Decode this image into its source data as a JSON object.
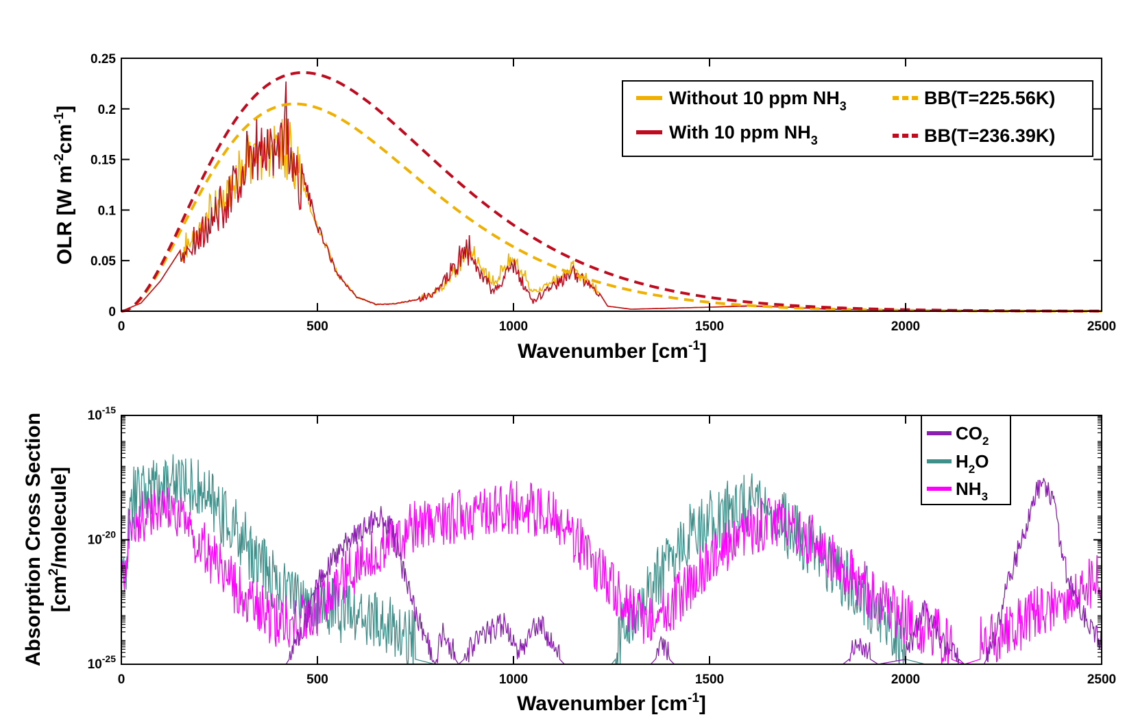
{
  "figure": {
    "colors": {
      "without": "#f0b000",
      "with": "#c00a1e",
      "co2": "#8a1fb0",
      "h2o": "#3f8f8a",
      "nh3": "#ff00ff"
    }
  },
  "chart_data": [
    {
      "type": "line",
      "title": "",
      "xlabel": "Wavenumber [cm",
      "xlabel_sup": "-1",
      "xlabel_end": "]",
      "ylabel": "OLR [W m",
      "ylabel_sup1": "-2",
      "ylabel_mid": "cm",
      "ylabel_sup2": "-1",
      "ylabel_end": "]",
      "xlim": [
        0,
        2500
      ],
      "ylim": [
        0,
        0.25
      ],
      "xticks": [
        0,
        500,
        1000,
        1500,
        2000,
        2500
      ],
      "xtick_labels": [
        "0",
        "500",
        "1000",
        "1500",
        "2000",
        "2500"
      ],
      "yticks": [
        0,
        0.05,
        0.1,
        0.15,
        0.2,
        0.25
      ],
      "ytick_labels": [
        "0",
        "0.05",
        "0.1",
        "0.15",
        "0.2",
        "0.25"
      ],
      "legend_position": "top-right",
      "series": [
        {
          "name": "Without 10 ppm NH3",
          "label": "Without 10 ppm NH",
          "label_sub": "3",
          "style": "solid",
          "color_key": "without",
          "points": [
            [
              0,
              0
            ],
            [
              50,
              0.008
            ],
            [
              100,
              0.03
            ],
            [
              150,
              0.06
            ],
            [
              200,
              0.09
            ],
            [
              250,
              0.12
            ],
            [
              300,
              0.15
            ],
            [
              350,
              0.17
            ],
            [
              400,
              0.175
            ],
            [
              430,
              0.17
            ],
            [
              450,
              0.15
            ],
            [
              500,
              0.09
            ],
            [
              550,
              0.04
            ],
            [
              600,
              0.015
            ],
            [
              650,
              0.007
            ],
            [
              700,
              0.008
            ],
            [
              750,
              0.012
            ],
            [
              800,
              0.02
            ],
            [
              850,
              0.04
            ],
            [
              880,
              0.065
            ],
            [
              900,
              0.06
            ],
            [
              950,
              0.03
            ],
            [
              1000,
              0.06
            ],
            [
              1050,
              0.02
            ],
            [
              1100,
              0.035
            ],
            [
              1150,
              0.045
            ],
            [
              1200,
              0.03
            ],
            [
              1240,
              0.005
            ],
            [
              1300,
              0.002
            ],
            [
              1500,
              0.004
            ],
            [
              1600,
              0.006
            ],
            [
              1700,
              0.004
            ],
            [
              1800,
              0.002
            ],
            [
              2000,
              0.001
            ],
            [
              2500,
              0.0005
            ]
          ]
        },
        {
          "name": "With 10 ppm NH3",
          "label": "With 10 ppm NH",
          "label_sub": "3",
          "style": "solid",
          "color_key": "with",
          "points": [
            [
              0,
              0
            ],
            [
              50,
              0.008
            ],
            [
              100,
              0.03
            ],
            [
              150,
              0.06
            ],
            [
              200,
              0.09
            ],
            [
              250,
              0.12
            ],
            [
              300,
              0.15
            ],
            [
              350,
              0.18
            ],
            [
              400,
              0.205
            ],
            [
              420,
              0.21
            ],
            [
              450,
              0.16
            ],
            [
              500,
              0.09
            ],
            [
              550,
              0.04
            ],
            [
              600,
              0.015
            ],
            [
              650,
              0.007
            ],
            [
              700,
              0.008
            ],
            [
              750,
              0.012
            ],
            [
              800,
              0.022
            ],
            [
              850,
              0.05
            ],
            [
              880,
              0.07
            ],
            [
              900,
              0.06
            ],
            [
              950,
              0.02
            ],
            [
              1000,
              0.055
            ],
            [
              1050,
              0.01
            ],
            [
              1100,
              0.03
            ],
            [
              1150,
              0.045
            ],
            [
              1200,
              0.03
            ],
            [
              1240,
              0.005
            ],
            [
              1300,
              0.002
            ],
            [
              1500,
              0.004
            ],
            [
              1600,
              0.005
            ],
            [
              1700,
              0.004
            ],
            [
              1800,
              0.002
            ],
            [
              2000,
              0.001
            ],
            [
              2500,
              0.0005
            ]
          ]
        },
        {
          "name": "BB(T=225.56K)",
          "label": "BB(T=225.56K)",
          "style": "dashed",
          "color_key": "without",
          "blackbody_T": 225.56
        },
        {
          "name": "BB(T=236.39K)",
          "label": "BB(T=236.39K)",
          "style": "dashed",
          "color_key": "with",
          "blackbody_T": 236.39
        }
      ]
    },
    {
      "type": "line",
      "title": "",
      "xlabel": "Wavenumber [cm",
      "xlabel_sup": "-1",
      "xlabel_end": "]",
      "ylabel_line1": "Absorption Cross Section",
      "ylabel_line2_a": "[cm",
      "ylabel_line2_sup": "2",
      "ylabel_line2_b": "/molecule]",
      "yscale": "log",
      "xlim": [
        0,
        2500
      ],
      "ylim_exp": [
        -25,
        -15
      ],
      "xticks": [
        0,
        500,
        1000,
        1500,
        2000,
        2500
      ],
      "xtick_labels": [
        "0",
        "500",
        "1000",
        "1500",
        "2000",
        "2500"
      ],
      "yticks_exp": [
        -25,
        -20,
        -15
      ],
      "ytick_base": "10",
      "ytick_exps": [
        "-25",
        "-20",
        "-15"
      ],
      "legend_position": "top-right",
      "series": [
        {
          "name": "CO2",
          "label": "CO",
          "label_sub": "2",
          "color_key": "co2",
          "log10_points": [
            [
              420,
              -25
            ],
            [
              460,
              -24
            ],
            [
              500,
              -22
            ],
            [
              560,
              -20.5
            ],
            [
              610,
              -19.8
            ],
            [
              660,
              -19.2
            ],
            [
              690,
              -19.8
            ],
            [
              720,
              -21.5
            ],
            [
              760,
              -23.5
            ],
            [
              800,
              -25
            ],
            [
              820,
              -24
            ],
            [
              860,
              -25
            ],
            [
              930,
              -24
            ],
            [
              980,
              -23.5
            ],
            [
              1010,
              -24.8
            ],
            [
              1040,
              -24
            ],
            [
              1070,
              -23.5
            ],
            [
              1100,
              -24.5
            ],
            [
              1130,
              -25
            ],
            [
              1350,
              -25
            ],
            [
              1380,
              -24.5
            ],
            [
              1410,
              -25
            ],
            [
              1840,
              -25
            ],
            [
              1880,
              -24.5
            ],
            [
              1930,
              -25
            ],
            [
              2000,
              -24.8
            ],
            [
              2050,
              -23
            ],
            [
              2080,
              -24
            ],
            [
              2150,
              -25
            ],
            [
              2200,
              -25
            ],
            [
              2230,
              -24
            ],
            [
              2260,
              -22
            ],
            [
              2300,
              -20
            ],
            [
              2330,
              -18.5
            ],
            [
              2350,
              -17.8
            ],
            [
              2375,
              -18.5
            ],
            [
              2400,
              -21
            ],
            [
              2430,
              -22.5
            ],
            [
              2470,
              -23.8
            ],
            [
              2500,
              -24.2
            ]
          ]
        },
        {
          "name": "H2O",
          "label": "H",
          "label_sub": "2",
          "label_end": "O",
          "color_key": "h2o",
          "log10_points": [
            [
              0,
              -23
            ],
            [
              30,
              -19
            ],
            [
              100,
              -18.5
            ],
            [
              150,
              -18.2
            ],
            [
              200,
              -18.8
            ],
            [
              250,
              -19.5
            ],
            [
              300,
              -20.5
            ],
            [
              350,
              -21.5
            ],
            [
              400,
              -22.5
            ],
            [
              450,
              -23
            ],
            [
              500,
              -23.3
            ],
            [
              550,
              -23.5
            ],
            [
              600,
              -23.8
            ],
            [
              650,
              -24
            ],
            [
              700,
              -24.4
            ],
            [
              750,
              -24.8
            ],
            [
              800,
              -25
            ],
            [
              1150,
              -25
            ],
            [
              1250,
              -25
            ],
            [
              1300,
              -24
            ],
            [
              1350,
              -22.5
            ],
            [
              1400,
              -21.5
            ],
            [
              1450,
              -20.5
            ],
            [
              1500,
              -20
            ],
            [
              1550,
              -19.5
            ],
            [
              1600,
              -19.2
            ],
            [
              1650,
              -19.5
            ],
            [
              1700,
              -20.2
            ],
            [
              1750,
              -20.8
            ],
            [
              1800,
              -21.5
            ],
            [
              1850,
              -22.3
            ],
            [
              1900,
              -23
            ],
            [
              1950,
              -24
            ],
            [
              2000,
              -24.8
            ],
            [
              2050,
              -25
            ],
            [
              2500,
              -25
            ]
          ]
        },
        {
          "name": "NH3",
          "label": "NH",
          "label_sub": "3",
          "color_key": "nh3",
          "log10_points": [
            [
              0,
              -23
            ],
            [
              20,
              -20
            ],
            [
              50,
              -19.8
            ],
            [
              100,
              -19.5
            ],
            [
              150,
              -20
            ],
            [
              200,
              -20.8
            ],
            [
              250,
              -21.8
            ],
            [
              300,
              -22.8
            ],
            [
              350,
              -23.5
            ],
            [
              400,
              -24
            ],
            [
              450,
              -24
            ],
            [
              500,
              -23.5
            ],
            [
              550,
              -22.5
            ],
            [
              600,
              -21.8
            ],
            [
              650,
              -21
            ],
            [
              700,
              -20.5
            ],
            [
              750,
              -20.2
            ],
            [
              800,
              -20
            ],
            [
              850,
              -19.8
            ],
            [
              900,
              -19.6
            ],
            [
              950,
              -19.5
            ],
            [
              1000,
              -19.4
            ],
            [
              1050,
              -19.5
            ],
            [
              1100,
              -19.8
            ],
            [
              1150,
              -20.5
            ],
            [
              1200,
              -21.5
            ],
            [
              1250,
              -22.5
            ],
            [
              1300,
              -23.5
            ],
            [
              1350,
              -24
            ],
            [
              1400,
              -23.5
            ],
            [
              1450,
              -22.5
            ],
            [
              1500,
              -21.5
            ],
            [
              1550,
              -20.8
            ],
            [
              1600,
              -20.3
            ],
            [
              1650,
              -20
            ],
            [
              1700,
              -20.2
            ],
            [
              1750,
              -20.6
            ],
            [
              1800,
              -21.2
            ],
            [
              1850,
              -22
            ],
            [
              1900,
              -22.7
            ],
            [
              1950,
              -23.3
            ],
            [
              2000,
              -23.8
            ],
            [
              2050,
              -24.3
            ],
            [
              2100,
              -24.7
            ],
            [
              2150,
              -25
            ],
            [
              2250,
              -24.5
            ],
            [
              2300,
              -24
            ],
            [
              2350,
              -23.5
            ],
            [
              2400,
              -23.2
            ],
            [
              2450,
              -22.5
            ],
            [
              2500,
              -22.3
            ]
          ]
        }
      ]
    }
  ]
}
